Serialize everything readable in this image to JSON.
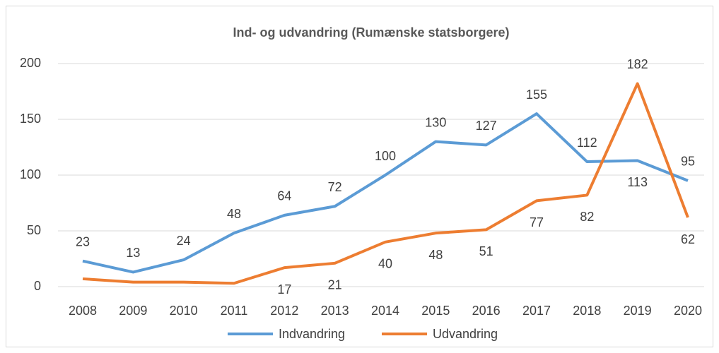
{
  "chart_data": {
    "type": "line",
    "title": "Ind- og udvandring (Rumænske statsborgere)",
    "categories": [
      "2008",
      "2009",
      "2010",
      "2011",
      "2012",
      "2013",
      "2014",
      "2015",
      "2016",
      "2017",
      "2018",
      "2019",
      "2020"
    ],
    "series": [
      {
        "name": "Indvandring",
        "color": "#5b9bd5",
        "values": [
          23,
          13,
          24,
          48,
          64,
          72,
          100,
          130,
          127,
          155,
          112,
          113,
          95
        ]
      },
      {
        "name": "Udvandring",
        "color": "#ed7d31",
        "values": [
          7,
          4,
          4,
          3,
          17,
          21,
          40,
          48,
          51,
          77,
          82,
          182,
          62
        ],
        "value_labels": [
          null,
          null,
          null,
          null,
          "17",
          "21",
          "40",
          "48",
          "51",
          "77",
          "82",
          "182",
          "62"
        ]
      }
    ],
    "ylim": [
      0,
      200
    ],
    "yticks": [
      0,
      50,
      100,
      150,
      200
    ],
    "grid": true,
    "legend": "bottom"
  }
}
